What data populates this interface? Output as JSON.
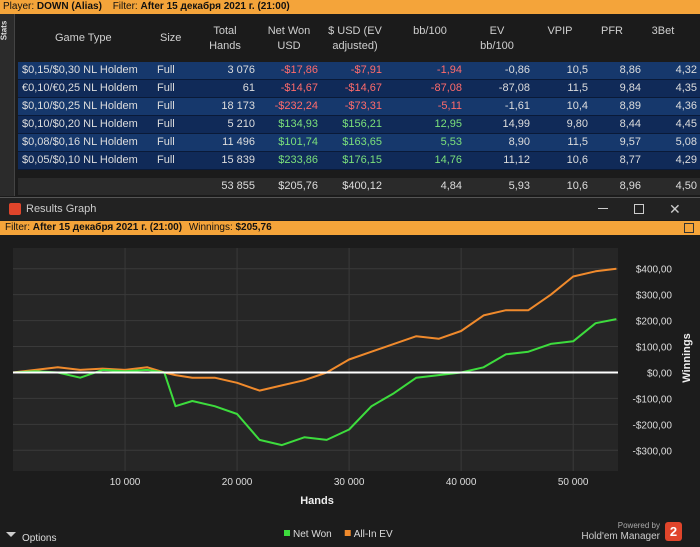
{
  "top_bar": {
    "player_label": "Player:",
    "player": "DOWN (Alias)",
    "filter_label": "Filter:",
    "filter": "After 15 декабря 2021 г. (21:00)"
  },
  "sidebar_tab": "Stats",
  "table": {
    "header": [
      "Game Type",
      "Size",
      "Total\nHands",
      "Net Won\nUSD",
      "$ USD (EV\nadjusted)",
      "bb/100",
      "EV\nbb/100",
      "VPIP",
      "PFR",
      "3Bet"
    ],
    "rows": [
      [
        "$0,15/$0,30 NL Holdem",
        "Full",
        "3 076",
        "-$17,86",
        "-$7,91",
        "-1,94",
        "-0,86",
        "10,5",
        "8,86",
        "4,32"
      ],
      [
        "€0,10/€0,25 NL Holdem",
        "Full",
        "61",
        "-$14,67",
        "-$14,67",
        "-87,08",
        "-87,08",
        "11,5",
        "9,84",
        "4,35"
      ],
      [
        "$0,10/$0,25 NL Holdem",
        "Full",
        "18 173",
        "-$232,24",
        "-$73,31",
        "-5,11",
        "-1,61",
        "10,4",
        "8,89",
        "4,36"
      ],
      [
        "$0,10/$0,20 NL Holdem",
        "Full",
        "5 210",
        "$134,93",
        "$156,21",
        "12,95",
        "14,99",
        "9,80",
        "8,44",
        "4,45"
      ],
      [
        "$0,08/$0,16 NL Holdem",
        "Full",
        "11 496",
        "$101,74",
        "$163,65",
        "5,53",
        "8,90",
        "11,5",
        "9,57",
        "5,08"
      ],
      [
        "$0,05/$0,10 NL Holdem",
        "Full",
        "15 839",
        "$233,86",
        "$176,15",
        "14,76",
        "11,12",
        "10,6",
        "8,77",
        "4,29"
      ]
    ],
    "totals": [
      "53 855",
      "$205,76",
      "$400,12",
      "4,84",
      "5,93",
      "10,6",
      "8,96",
      "4,50"
    ]
  },
  "window": {
    "title": "Results Graph",
    "filter_label": "Filter:",
    "filter": "After 15 декабря 2021 г. (21:00)",
    "winnings_label": "Winnings:",
    "winnings": "$205,76"
  },
  "chart_data": {
    "type": "line",
    "x_label": "Hands",
    "y_label": "Winnings",
    "x": [
      0,
      2000,
      4000,
      6000,
      8000,
      10000,
      12000,
      13500,
      14500,
      16000,
      18000,
      20000,
      22000,
      24000,
      26000,
      28000,
      30000,
      32000,
      34000,
      36000,
      38000,
      40000,
      42000,
      44000,
      46000,
      48000,
      50000,
      52000,
      53855
    ],
    "series": [
      {
        "name": "Net Won",
        "color": "#3ddc3d",
        "values": [
          0,
          5,
          0,
          -20,
          10,
          5,
          10,
          0,
          -130,
          -110,
          -130,
          -160,
          -260,
          -280,
          -250,
          -260,
          -220,
          -130,
          -80,
          -20,
          -10,
          0,
          20,
          70,
          80,
          110,
          120,
          190,
          205.76
        ]
      },
      {
        "name": "All-In EV",
        "color": "#f08a2c",
        "values": [
          0,
          10,
          20,
          10,
          15,
          10,
          20,
          0,
          -10,
          -20,
          -20,
          -40,
          -70,
          -50,
          -30,
          0,
          50,
          80,
          110,
          140,
          130,
          160,
          220,
          240,
          240,
          300,
          370,
          390,
          400.12
        ]
      }
    ],
    "xlim": [
      0,
      54000
    ],
    "ylim": [
      -380,
      480
    ],
    "xticks": [
      {
        "value": 10000,
        "label": "10 000"
      },
      {
        "value": 20000,
        "label": "20 000"
      },
      {
        "value": 30000,
        "label": "30 000"
      },
      {
        "value": 40000,
        "label": "40 000"
      },
      {
        "value": 50000,
        "label": "50 000"
      }
    ],
    "yticks": [
      {
        "value": -300,
        "label": "-$300,00"
      },
      {
        "value": -200,
        "label": "-$200,00"
      },
      {
        "value": -100,
        "label": "-$100,00"
      },
      {
        "value": 0,
        "label": "$0,00"
      },
      {
        "value": 100,
        "label": "$100,00"
      },
      {
        "value": 200,
        "label": "$200,00"
      },
      {
        "value": 300,
        "label": "$300,00"
      },
      {
        "value": 400,
        "label": "$400,00"
      }
    ],
    "grid": true
  },
  "footer": {
    "options": "Options",
    "powered_by": "Powered by",
    "brand": "Hold'em Manager",
    "badge": "2"
  }
}
